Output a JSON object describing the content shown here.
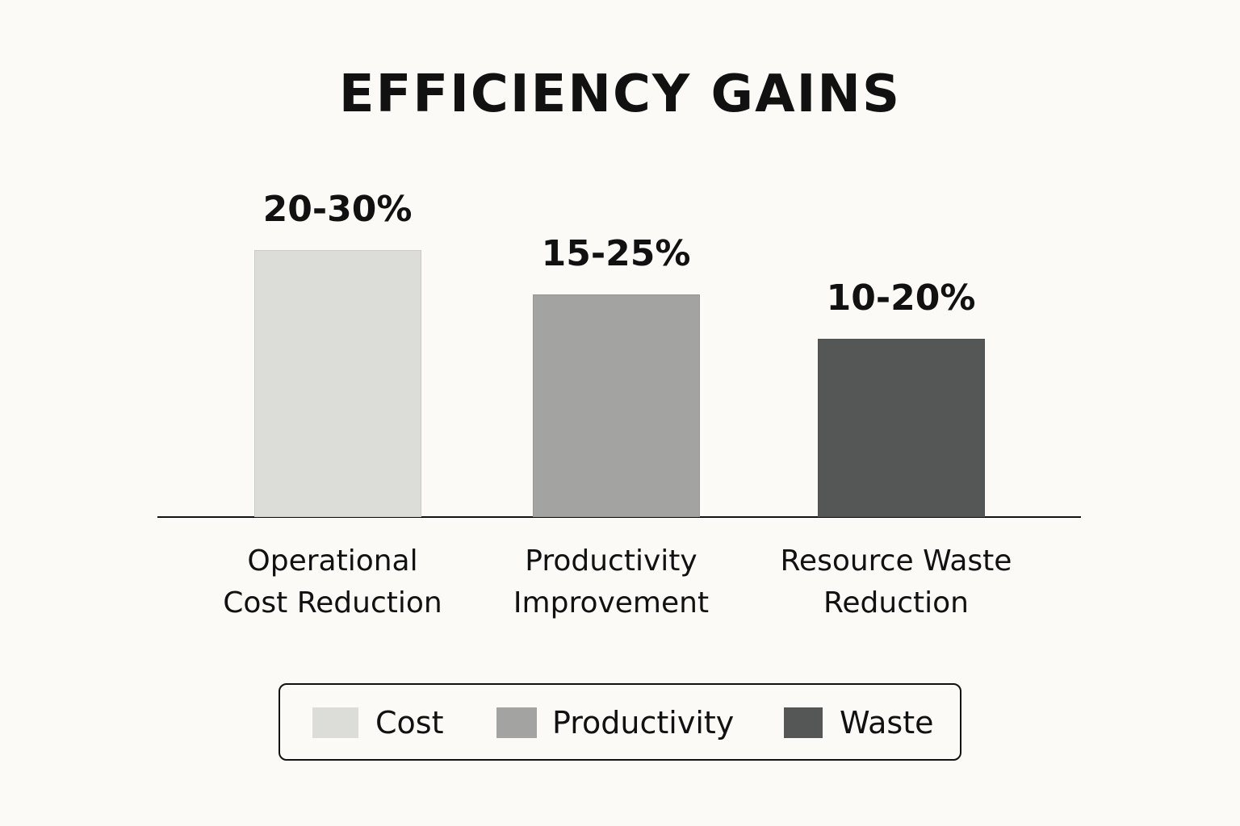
{
  "chart_data": {
    "type": "bar",
    "title": "EFFICIENCY GAINS",
    "categories": [
      "Operational\nCost Reduction",
      "Productivity\nImprovement",
      "Resource Waste\nReduction"
    ],
    "values": [
      30,
      25,
      20
    ],
    "value_labels": [
      "20-30%",
      "15-25%",
      "10-20%"
    ],
    "colors": [
      "#dcdcd9",
      "#a3a3a1",
      "#555756"
    ],
    "legend": [
      "Cost",
      "Productivity",
      "Waste"
    ]
  }
}
